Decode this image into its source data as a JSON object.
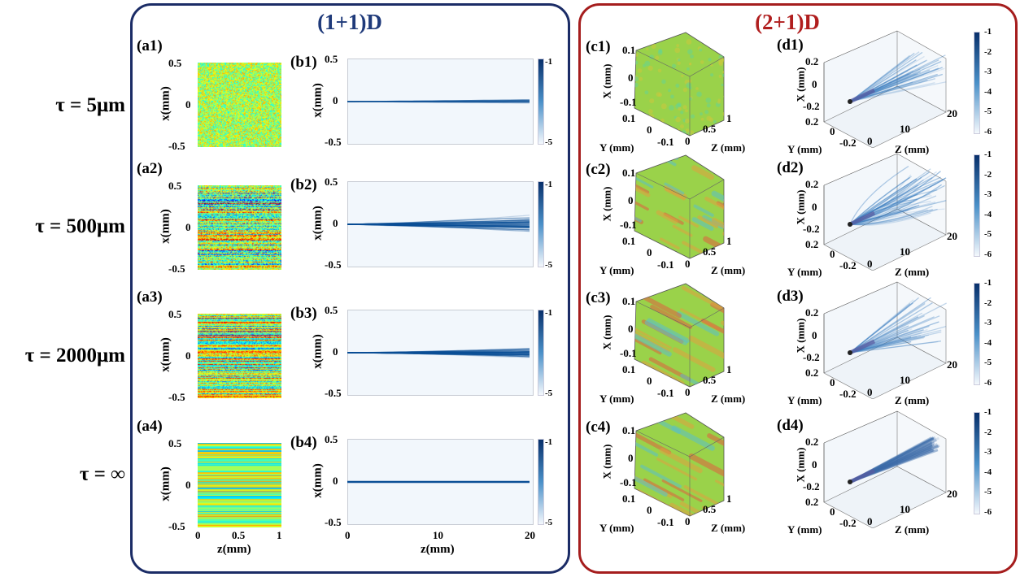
{
  "colors": {
    "left_frame": "#1b2c66",
    "right_frame": "#a51d1d",
    "intensity_map": "blues",
    "medium_map": "jet"
  },
  "left_panel": {
    "title": "(1+1)D"
  },
  "right_panel": {
    "title": "(2+1)D"
  },
  "rows": [
    {
      "label": "τ = 5μm",
      "a": "(a1)",
      "b": "(b1)",
      "c": "(c1)",
      "d": "(d1)"
    },
    {
      "label": "τ = 500μm",
      "a": "(a2)",
      "b": "(b2)",
      "c": "(c2)",
      "d": "(d2)"
    },
    {
      "label": "τ = 2000μm",
      "a": "(a3)",
      "b": "(b3)",
      "c": "(c3)",
      "d": "(d3)"
    },
    {
      "label": "τ = ∞",
      "a": "(a4)",
      "b": "(b4)",
      "c": "(c4)",
      "d": "(d4)"
    }
  ],
  "a_axes": {
    "yticks": [
      "0.5",
      "0",
      "-0.5"
    ],
    "ylabel": "x(mm)",
    "xticks": [
      "0",
      "0.5",
      "1"
    ],
    "xlabel": "z(mm)"
  },
  "b_axes": {
    "yticks": [
      "0.5",
      "0",
      "-0.5"
    ],
    "ylabel": "x(mm)",
    "xticks": [
      "0",
      "10",
      "20"
    ],
    "xlabel": "z(mm)",
    "colorbar": [
      "-1",
      "-5"
    ]
  },
  "c_axes": {
    "xticks": [
      "0.1",
      "0",
      "-0.1"
    ],
    "yticks": [
      "0.1",
      "0",
      "-0.1"
    ],
    "zticks": [
      "0",
      "0.5",
      "1"
    ],
    "xlabel": "X (mm)",
    "ylabel": "Y (mm)",
    "zlabel": "Z (mm)"
  },
  "d_axes": {
    "xticks": [
      "0.2",
      "0",
      "-0.2"
    ],
    "yticks": [
      "0.2",
      "0",
      "-0.2"
    ],
    "zticks": [
      "0",
      "10",
      "20"
    ],
    "xlabel": "X (mm)",
    "ylabel": "Y (mm)",
    "zlabel": "Z (mm)",
    "colorbar": [
      "-1",
      "-2",
      "-3",
      "-4",
      "-5",
      "-6"
    ]
  }
}
